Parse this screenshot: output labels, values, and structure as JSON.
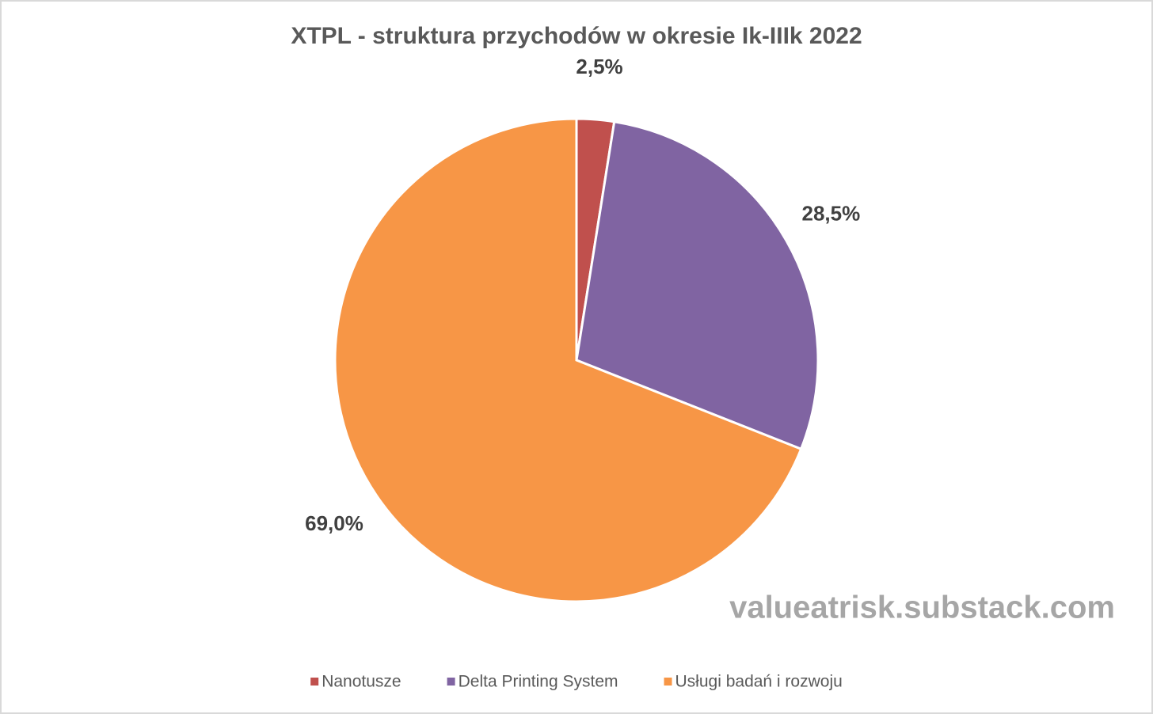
{
  "chart_data": {
    "type": "pie",
    "title": "XTPL - struktura przychodów w okresie Ik-IIIk 2022",
    "categories": [
      "Nanotusze",
      "Delta Printing System",
      "Usługi badań i rozwoju"
    ],
    "values": [
      2.5,
      28.5,
      69.0
    ],
    "value_labels": [
      "2,5%",
      "28,5%",
      "69,0%"
    ],
    "colors": [
      "#c0504d",
      "#8064a2",
      "#f79646"
    ],
    "annotation": "valueatrisk.substack.com",
    "legend": "bottom"
  }
}
